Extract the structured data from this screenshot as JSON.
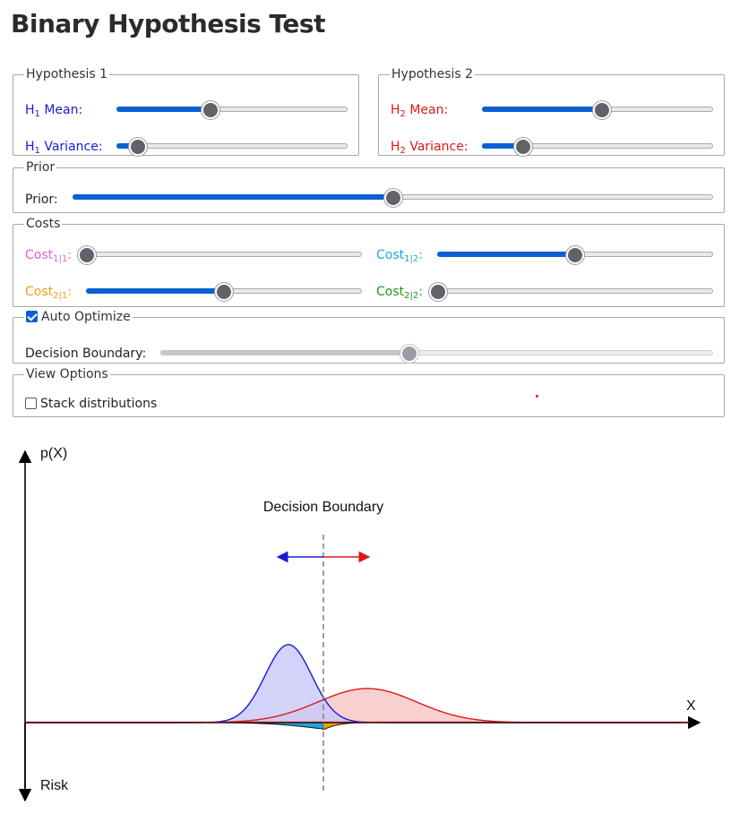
{
  "title": "Binary Hypothesis Test",
  "hypothesis1": {
    "legend": "Hypothesis 1",
    "mean_label": "H",
    "mean_sub": "1",
    "mean_text": " Mean:",
    "var_label": "H",
    "var_sub": "1",
    "var_text": " Variance:",
    "mean_value": 0.405,
    "var_value": 0.09,
    "color": "#1a1ad6"
  },
  "hypothesis2": {
    "legend": "Hypothesis 2",
    "mean_label": "H",
    "mean_sub": "2",
    "mean_text": " Mean:",
    "var_label": "H",
    "var_sub": "2",
    "var_text": " Variance:",
    "mean_value": 0.52,
    "var_value": 0.175,
    "color": "#e01818"
  },
  "prior": {
    "legend": "Prior",
    "label": "Prior:",
    "value": 0.5
  },
  "costs": {
    "legend": "Costs",
    "c11": {
      "base": "Cost",
      "sub": "1|1",
      "suffix": ":",
      "value": 0.0,
      "color": "#e060e0"
    },
    "c12": {
      "base": "Cost",
      "sub": "1|2",
      "suffix": ":",
      "value": 0.5,
      "color": "#1aa8dc"
    },
    "c21": {
      "base": "Cost",
      "sub": "2|1",
      "suffix": ":",
      "value": 0.5,
      "color": "#f0a010"
    },
    "c22": {
      "base": "Cost",
      "sub": "2|2",
      "suffix": ":",
      "value": 0.0,
      "color": "#1f9a1f"
    }
  },
  "optimize": {
    "legend": "Auto Optimize",
    "checked": true,
    "label": "Decision Boundary:",
    "value": 0.45
  },
  "view": {
    "legend": "View Options",
    "stack_label": "Stack distributions",
    "stack_checked": false
  },
  "plot": {
    "y_up_label": "p(X)",
    "y_down_label": "Risk",
    "x_label": "X",
    "boundary_label": "Decision Boundary",
    "h1_fill": "#c8c8f8",
    "h2_fill": "#f8c8c8",
    "risk_left_fill": "#1aa8dc",
    "risk_right_fill": "#f0a010"
  }
}
